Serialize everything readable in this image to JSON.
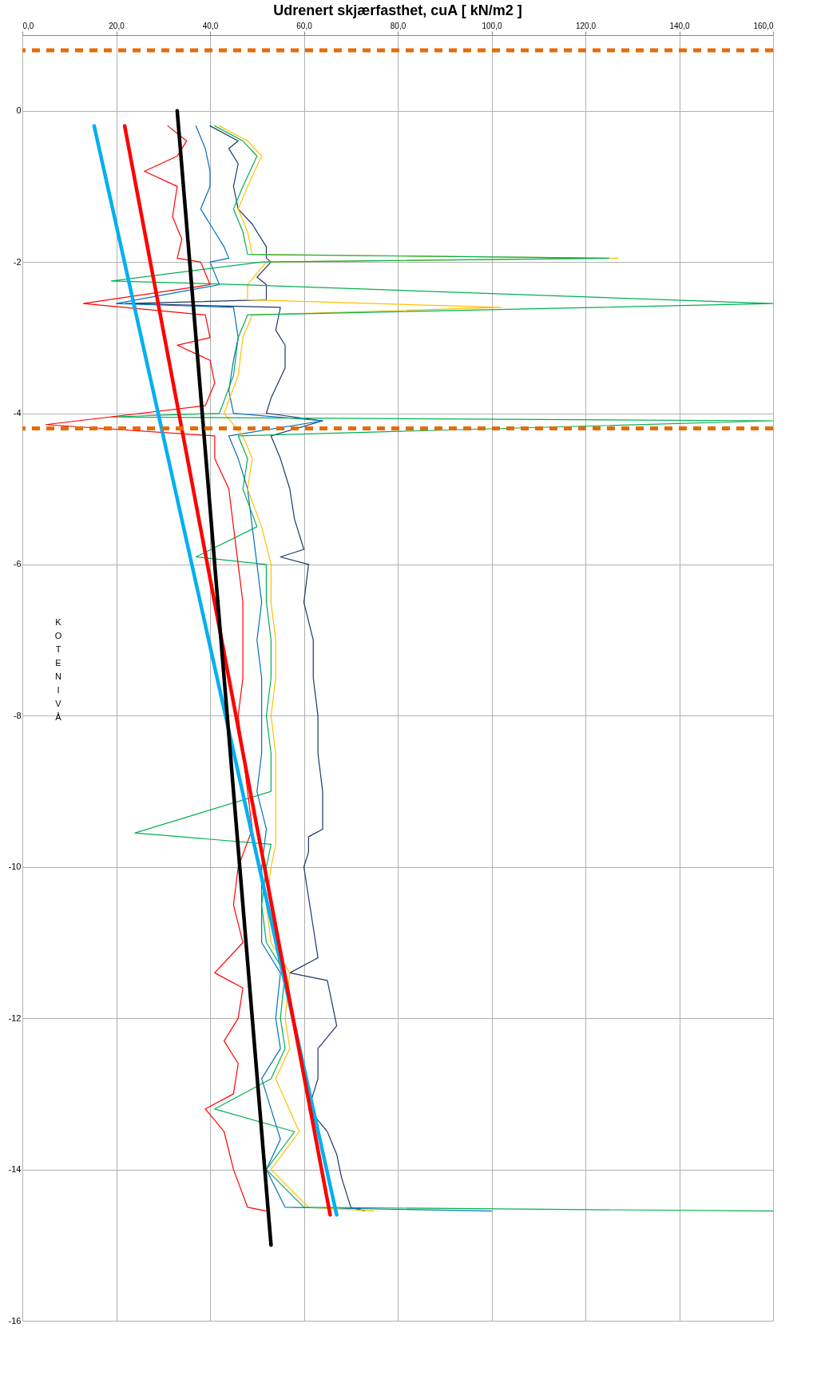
{
  "chart_data": {
    "type": "line",
    "title": "Udrenert skjærfasthet, cuA [ kN/m2 ]",
    "ylabel": "KOTENIVÅ",
    "xlim": [
      0,
      160
    ],
    "xticks": [
      {
        "value": 0,
        "label": "0,0"
      },
      {
        "value": 20,
        "label": "20,0"
      },
      {
        "value": 40,
        "label": "40,0"
      },
      {
        "value": 60,
        "label": "60,0"
      },
      {
        "value": 80,
        "label": "80,0"
      },
      {
        "value": 100,
        "label": "100,0"
      },
      {
        "value": 120,
        "label": "120,0"
      },
      {
        "value": 140,
        "label": "140,0"
      },
      {
        "value": 160,
        "label": "160,0"
      }
    ],
    "ylim": [
      -16,
      1
    ],
    "yticks": [
      -16,
      -14,
      -12,
      -10,
      -8,
      -6,
      -4,
      -2,
      0
    ],
    "grid": true,
    "line_style": "solid",
    "marker": "none",
    "series": [
      {
        "color": "#1f3864",
        "x": [
          40,
          46,
          44,
          46,
          45,
          46,
          49,
          52,
          52,
          53,
          50,
          52,
          52,
          22,
          55,
          54,
          56,
          56,
          53,
          52,
          64,
          53,
          55,
          57,
          58,
          60,
          55,
          61,
          60,
          62,
          62,
          63,
          63,
          64,
          64,
          61,
          61,
          60,
          61,
          62,
          63,
          57,
          65,
          66,
          67,
          63,
          63,
          61,
          65,
          67,
          68,
          70,
          73
        ],
        "values": [
          -0.2,
          -0.4,
          -0.5,
          -0.7,
          -1.0,
          -1.3,
          -1.5,
          -1.8,
          -1.95,
          -2.0,
          -2.2,
          -2.3,
          -2.5,
          -2.55,
          -2.6,
          -2.9,
          -3.1,
          -3.4,
          -3.8,
          -4.0,
          -4.1,
          -4.3,
          -4.6,
          -5.0,
          -5.4,
          -5.8,
          -5.9,
          -6.0,
          -6.5,
          -7.0,
          -7.5,
          -8.0,
          -8.5,
          -9.0,
          -9.5,
          -9.6,
          -9.8,
          -10.0,
          -10.4,
          -10.8,
          -11.2,
          -11.4,
          -11.5,
          -11.8,
          -12.1,
          -12.4,
          -12.8,
          -13.2,
          -13.5,
          -13.8,
          -14.1,
          -14.5,
          -14.55
        ]
      },
      {
        "color": "#0070c0",
        "x": [
          37,
          39,
          40,
          40,
          38,
          40,
          43,
          44,
          40,
          42,
          20,
          45,
          46,
          45,
          44,
          45,
          64,
          44,
          46,
          48,
          49,
          50,
          51,
          50,
          51,
          51,
          51,
          50,
          52,
          51,
          51,
          51,
          55,
          54,
          55,
          51,
          53,
          55,
          52,
          56,
          100
        ],
        "values": [
          -0.2,
          -0.5,
          -0.8,
          -1.0,
          -1.3,
          -1.5,
          -1.8,
          -1.95,
          -2.0,
          -2.3,
          -2.55,
          -2.6,
          -3.0,
          -3.3,
          -3.7,
          -4.0,
          -4.1,
          -4.3,
          -4.6,
          -5.0,
          -5.5,
          -6.0,
          -6.5,
          -7.0,
          -7.5,
          -8.0,
          -8.5,
          -9.0,
          -9.5,
          -10.0,
          -10.5,
          -11.0,
          -11.4,
          -12.0,
          -12.4,
          -12.8,
          -13.2,
          -13.6,
          -14.0,
          -14.5,
          -14.55
        ]
      },
      {
        "color": "#ffc000",
        "x": [
          42,
          48,
          51,
          48,
          46,
          48,
          49,
          127,
          52,
          48,
          48,
          102,
          49,
          47,
          46,
          43,
          47,
          49,
          48,
          51,
          53,
          53,
          54,
          54,
          53,
          54,
          54,
          54,
          53,
          52,
          53,
          57,
          56,
          57,
          54,
          59,
          53,
          61,
          75
        ],
        "values": [
          -0.2,
          -0.4,
          -0.6,
          -1.0,
          -1.3,
          -1.6,
          -1.9,
          -1.95,
          -2.0,
          -2.3,
          -2.5,
          -2.6,
          -2.7,
          -3.0,
          -3.5,
          -4.0,
          -4.3,
          -4.6,
          -5.0,
          -5.5,
          -6.0,
          -6.5,
          -7.0,
          -7.5,
          -8.0,
          -8.5,
          -9.0,
          -9.7,
          -10.0,
          -10.5,
          -11.0,
          -11.4,
          -12.0,
          -12.4,
          -12.8,
          -13.5,
          -14.0,
          -14.5,
          -14.55
        ]
      },
      {
        "color": "#00b050",
        "x": [
          41,
          47,
          50,
          47,
          45,
          47,
          48,
          125,
          51,
          19,
          47,
          160,
          48,
          46,
          45,
          42,
          19,
          160,
          46,
          48,
          47,
          50,
          37,
          52,
          52,
          53,
          53,
          52,
          53,
          53,
          24,
          53,
          52,
          51,
          52,
          56,
          55,
          56,
          53,
          41,
          58,
          52,
          60,
          160
        ],
        "values": [
          -0.2,
          -0.4,
          -0.6,
          -1.0,
          -1.3,
          -1.6,
          -1.9,
          -1.95,
          -2.0,
          -2.25,
          -2.3,
          -2.55,
          -2.7,
          -3.0,
          -3.5,
          -4.0,
          -4.05,
          -4.1,
          -4.3,
          -4.6,
          -5.0,
          -5.5,
          -5.9,
          -6.0,
          -6.5,
          -7.0,
          -7.5,
          -8.0,
          -8.5,
          -9.0,
          -9.55,
          -9.7,
          -10.0,
          -10.5,
          -11.0,
          -11.4,
          -12.0,
          -12.4,
          -12.8,
          -13.2,
          -13.5,
          -14.0,
          -14.5,
          -14.55
        ]
      },
      {
        "color": "#ff0000",
        "x": [
          31,
          35,
          33,
          26,
          33,
          32,
          34,
          33,
          38,
          40,
          13,
          39,
          40,
          33,
          40,
          41,
          39,
          5,
          41,
          41,
          44,
          45,
          46,
          47,
          47,
          47,
          46,
          47,
          48,
          49,
          46,
          45,
          47,
          41,
          47,
          46,
          43,
          46,
          45,
          39,
          43,
          45,
          48,
          52
        ],
        "values": [
          -0.2,
          -0.4,
          -0.6,
          -0.8,
          -1.0,
          -1.4,
          -1.7,
          -1.95,
          -2.0,
          -2.3,
          -2.55,
          -2.7,
          -3.0,
          -3.1,
          -3.3,
          -3.6,
          -3.9,
          -4.15,
          -4.3,
          -4.6,
          -5.0,
          -5.5,
          -6.0,
          -6.5,
          -7.0,
          -7.5,
          -8.0,
          -8.5,
          -9.0,
          -9.5,
          -10.0,
          -10.5,
          -11.0,
          -11.4,
          -11.6,
          -12.0,
          -12.3,
          -12.6,
          -13.0,
          -13.2,
          -13.5,
          -14.0,
          -14.5,
          -14.55
        ]
      },
      {
        "color": "#00b0f0",
        "x": [
          15.3,
          67
        ],
        "values": [
          -0.2,
          -14.6
        ]
      },
      {
        "color": "#ff0000",
        "x": [
          21.8,
          65.6
        ],
        "values": [
          -0.2,
          -14.6
        ]
      },
      {
        "color": "#000000",
        "x": [
          33,
          53
        ],
        "values": [
          0,
          -15
        ]
      }
    ],
    "ref_lines": [
      {
        "axis": "y",
        "value": 0.8,
        "label": null,
        "color": "#e46c0a",
        "line_style": "dashed"
      },
      {
        "axis": "y",
        "value": -4.2,
        "label": null,
        "color": "#e46c0a",
        "line_style": "dashed"
      }
    ]
  }
}
